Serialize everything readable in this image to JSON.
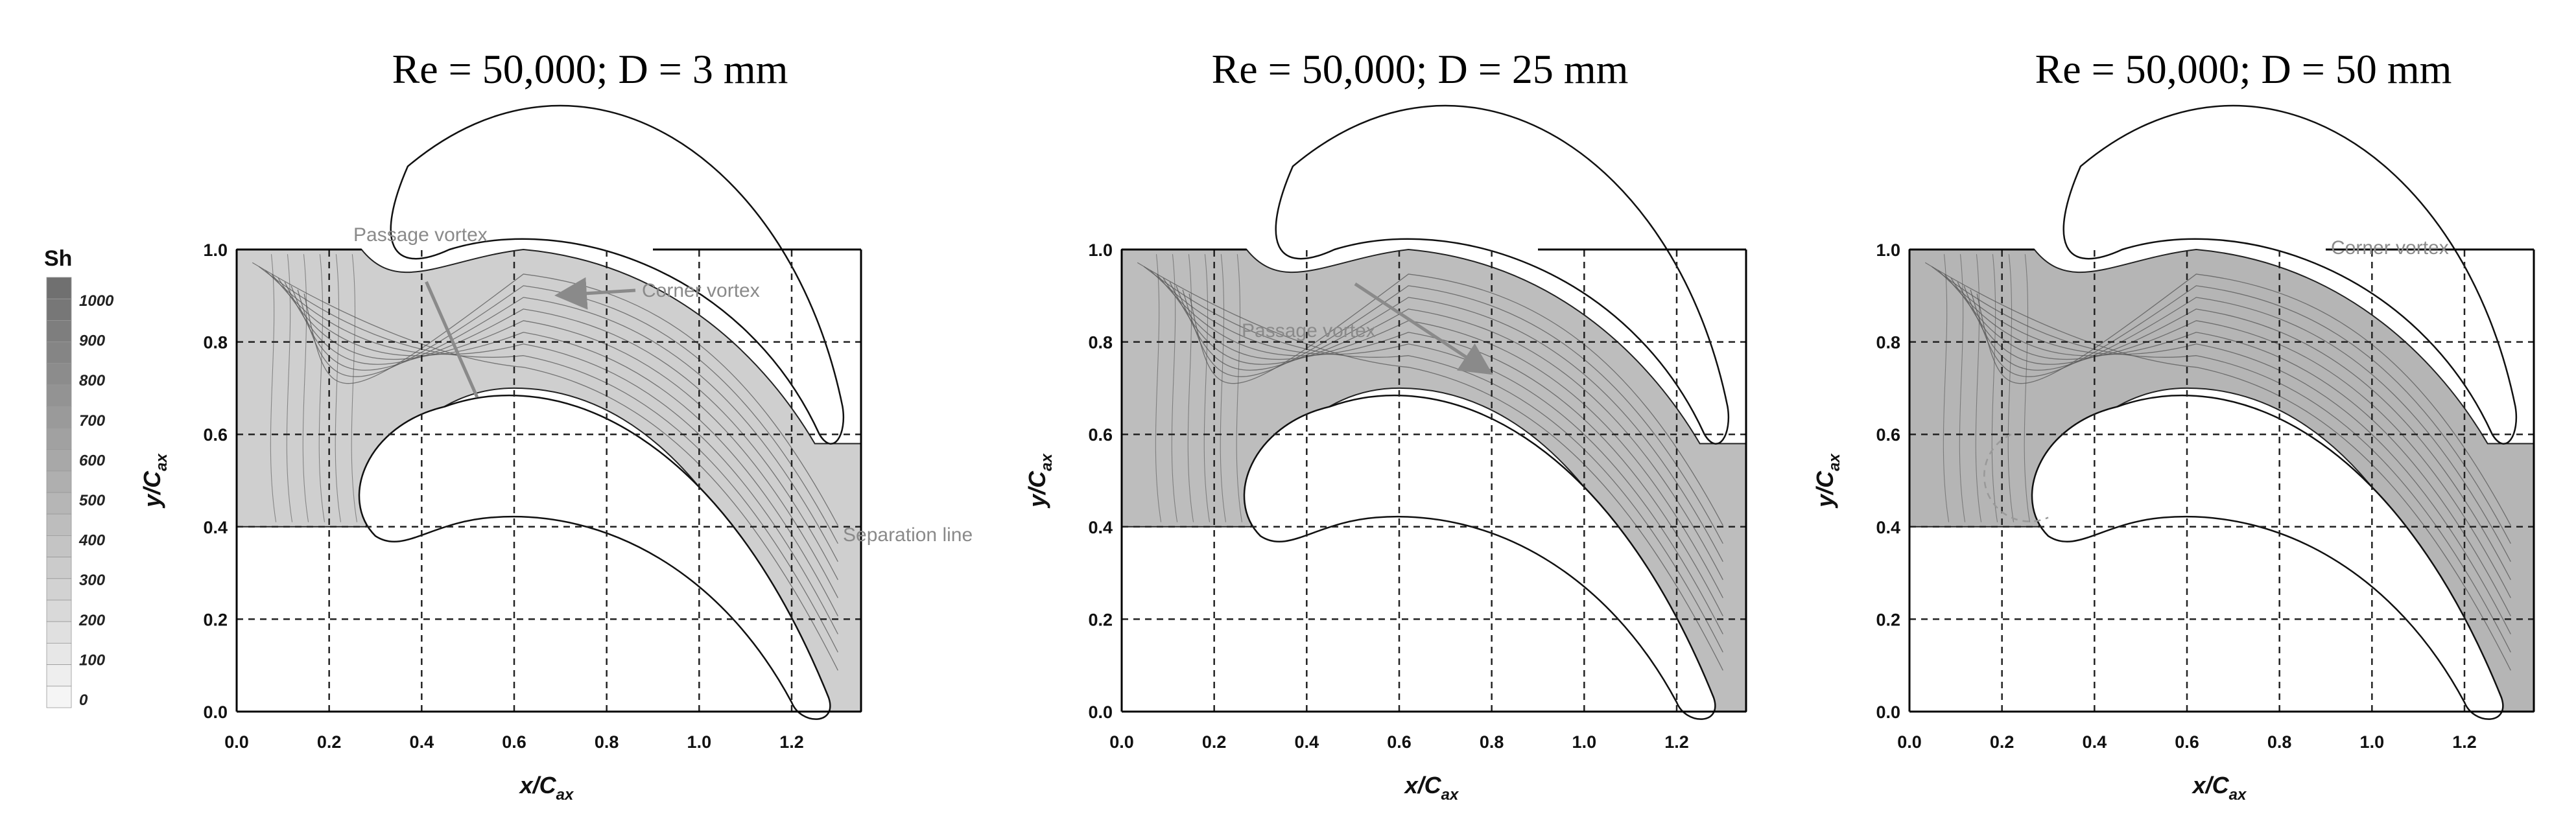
{
  "legend": {
    "title": "Sh",
    "ticks": [
      "1000",
      "900",
      "800",
      "700",
      "600",
      "500",
      "400",
      "300",
      "200",
      "100",
      "0"
    ]
  },
  "axes": {
    "x_ticks": [
      "0.0",
      "0.2",
      "0.4",
      "0.6",
      "0.8",
      "1.0",
      "1.2"
    ],
    "y_ticks": [
      "0.0",
      "0.2",
      "0.4",
      "0.6",
      "0.8",
      "1.0"
    ],
    "xlabel_main": "x/C",
    "xlabel_sub": "ax",
    "ylabel_main": "y/C",
    "ylabel_sub": "ax"
  },
  "panels": [
    {
      "title": "Re = 50,000; D = 3 mm",
      "annotations": [
        {
          "text": "Passage vortex"
        },
        {
          "text": "Corner vortex"
        },
        {
          "text": "Separation line"
        }
      ]
    },
    {
      "title": "Re = 50,000; D = 25 mm",
      "annotations": [
        {
          "text": "Passage vortex"
        }
      ]
    },
    {
      "title": "Re = 50,000; D = 50 mm",
      "annotations": [
        {
          "text": "Corner vortex"
        }
      ]
    }
  ],
  "colors": {
    "panel1_fill": "#cfcfcf",
    "panel2_fill": "#bdbdbd",
    "panel3_fill": "#b5b5b5",
    "contour": "#555555",
    "annotation": "#8a8a8a"
  }
}
